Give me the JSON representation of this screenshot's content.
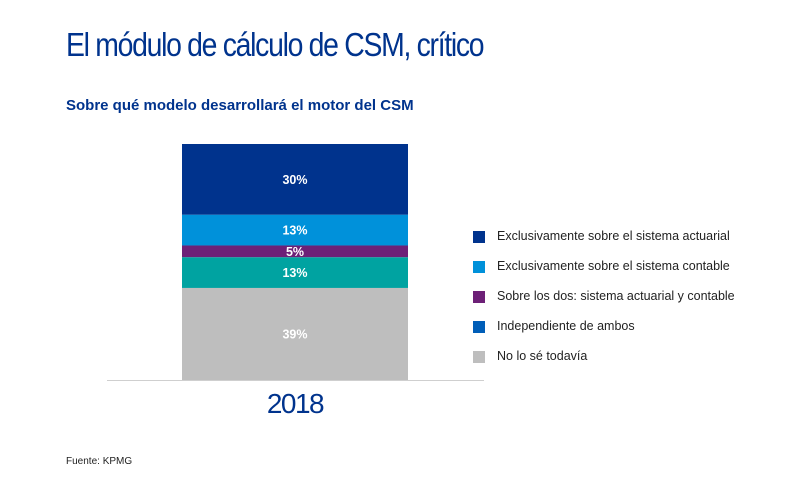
{
  "title": "El módulo de cálculo de CSM, crítico",
  "subtitle": "Sobre qué modelo desarrollará el motor del CSM",
  "source": "Fuente: KPMG",
  "chart_data": {
    "type": "bar",
    "stacked": true,
    "categories": [
      "2018"
    ],
    "series": [
      {
        "name": "Exclusivamente sobre el sistema actuarial",
        "values": [
          30
        ],
        "label": "30%",
        "color": "#00338D"
      },
      {
        "name": "Exclusivamente sobre el sistema contable",
        "values": [
          13
        ],
        "label": "13%",
        "color": "#0091DA"
      },
      {
        "name": "Sobre los dos: sistema actuarial y contable",
        "values": [
          5
        ],
        "label": "5%",
        "color": "#6D2077"
      },
      {
        "name": "Independiente de ambos",
        "values": [
          13
        ],
        "label": "13%",
        "color": "#00A3A1"
      },
      {
        "name": "No lo sé todavía",
        "values": [
          39
        ],
        "label": "39%",
        "color": "#BEBEBE"
      }
    ],
    "legend": [
      {
        "name": "Exclusivamente sobre el sistema actuarial",
        "color": "#00338D"
      },
      {
        "name": "Exclusivamente sobre el sistema contable",
        "color": "#0091DA"
      },
      {
        "name": "Sobre los dos: sistema actuarial y contable",
        "color": "#6D2077"
      },
      {
        "name": "Independiente de ambos",
        "color": "#005EB8"
      },
      {
        "name": "No lo sé todavía",
        "color": "#BEBEBE"
      }
    ],
    "legend_position": "right",
    "ylim": [
      0,
      100
    ],
    "grid": false
  }
}
